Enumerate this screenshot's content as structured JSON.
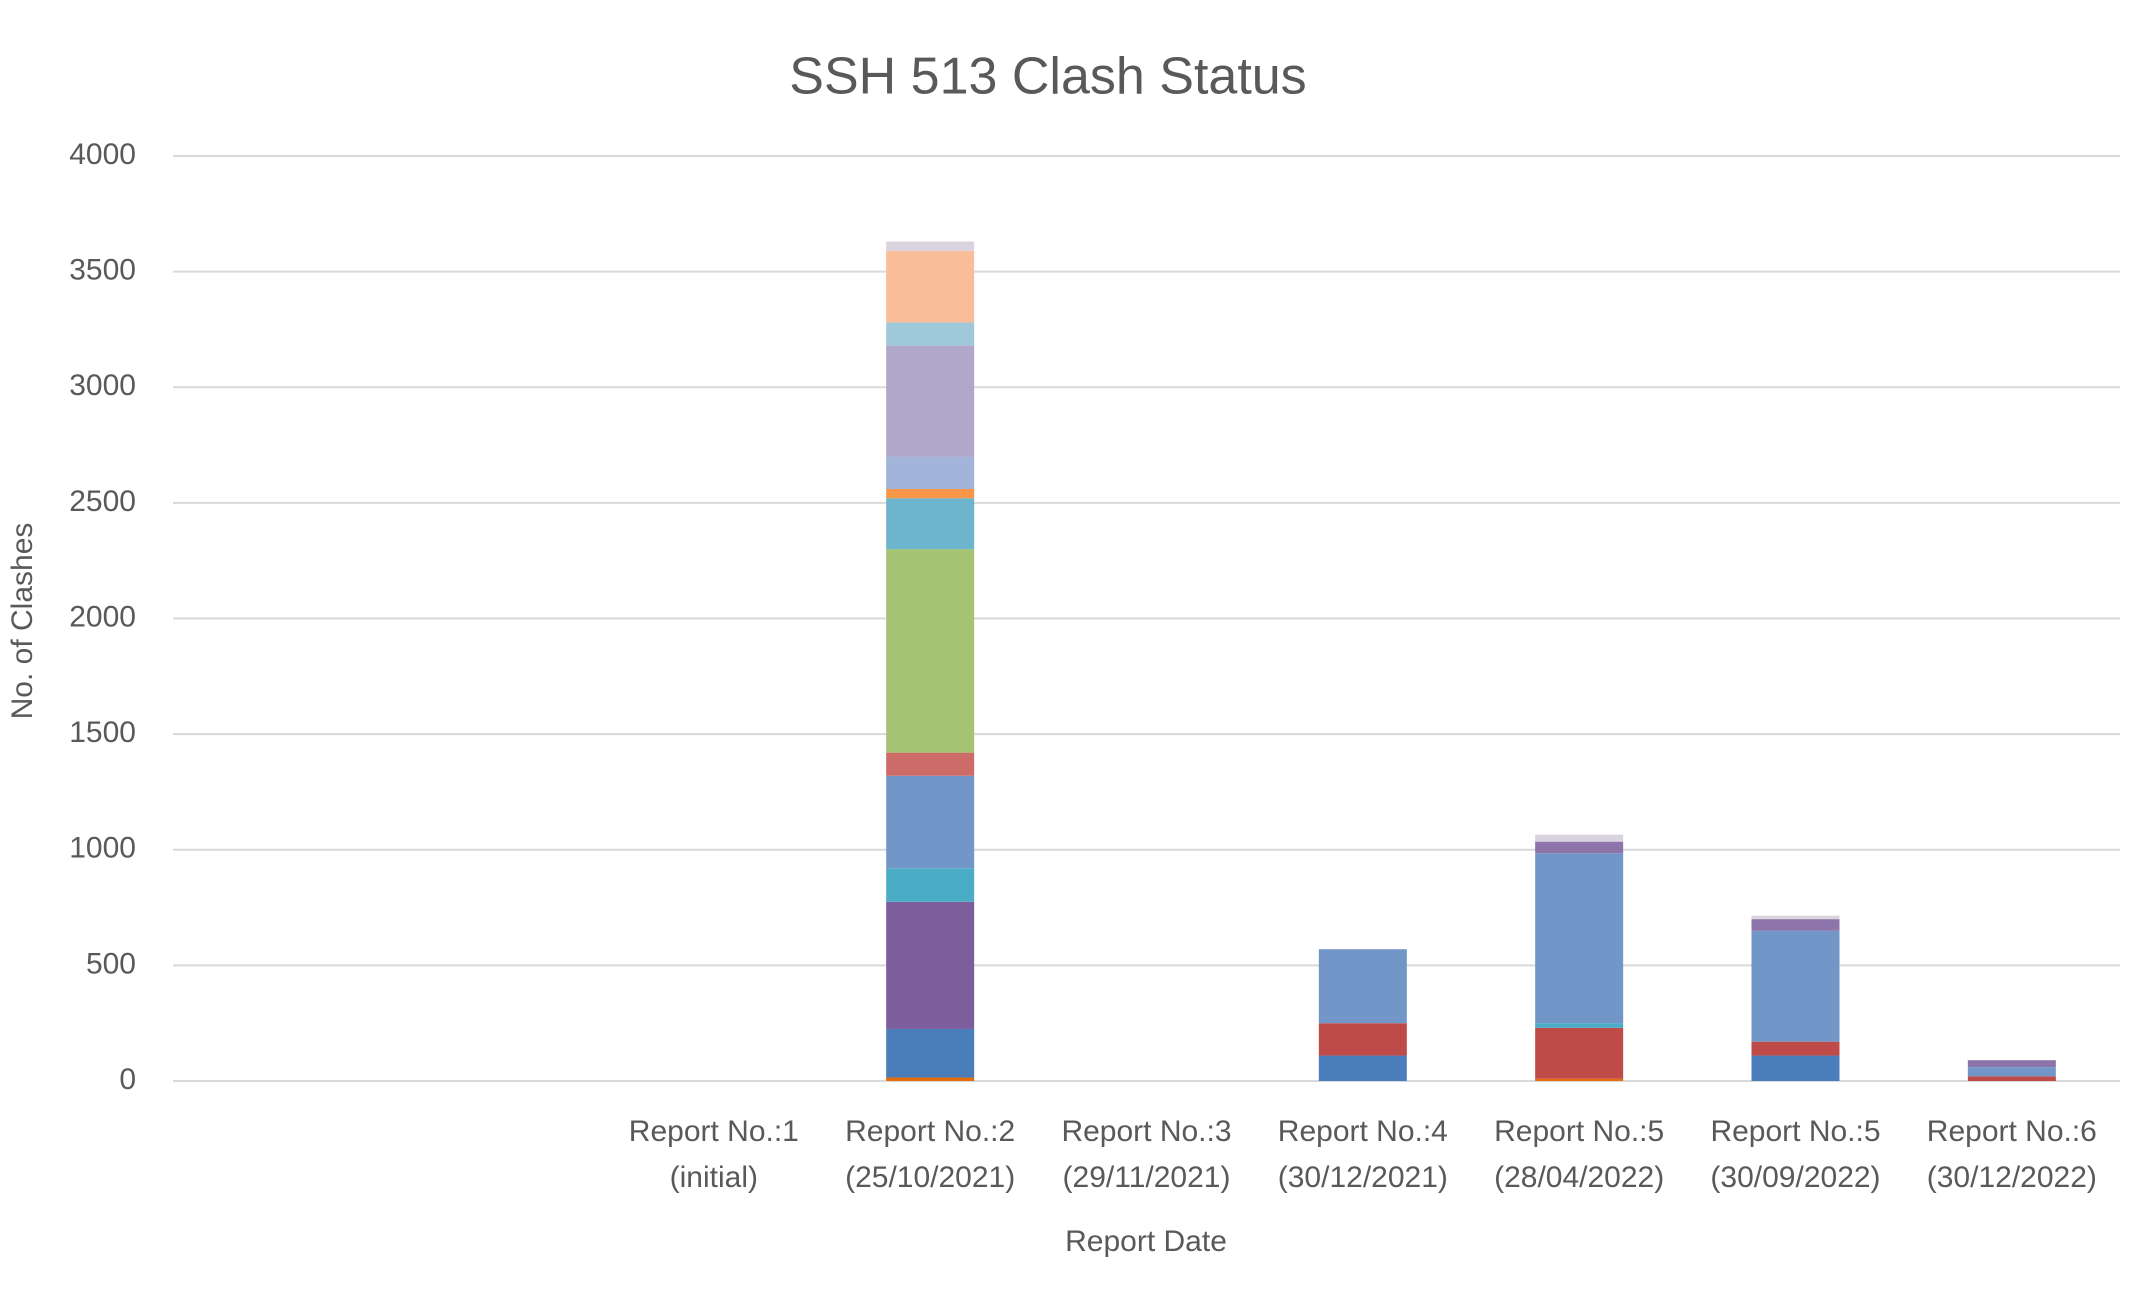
{
  "chart_data": {
    "type": "stacked_bar",
    "title": "SSH 513 Clash Status",
    "x_label": "Report Date",
    "y_label": "No. of Clashes",
    "categories": [
      null,
      null,
      [
        "Report No.:1",
        "(initial)"
      ],
      [
        "Report No.:2",
        "(25/10/2021)"
      ],
      [
        "Report No.:3",
        "(29/11/2021)"
      ],
      [
        "Report No.:4",
        "(30/12/2021)"
      ],
      [
        "Report No.:5",
        "(28/04/2022)"
      ],
      [
        "Report No.:5",
        "(30/09/2022)"
      ],
      [
        "Report No.:6",
        "(30/12/2022)"
      ]
    ],
    "series": [
      {
        "color": "#e46c0a",
        "values": [
          0,
          0,
          0,
          15,
          0,
          0,
          10,
          0,
          0
        ]
      },
      {
        "color": "#4a7ebb",
        "values": [
          0,
          0,
          0,
          210,
          0,
          110,
          0,
          110,
          0
        ]
      },
      {
        "color": "#be4b48",
        "values": [
          0,
          0,
          0,
          0,
          0,
          140,
          220,
          60,
          20
        ]
      },
      {
        "color": "#7d5e9c",
        "values": [
          0,
          0,
          0,
          550,
          0,
          0,
          0,
          0,
          0
        ]
      },
      {
        "color": "#4bacc6",
        "values": [
          0,
          0,
          0,
          145,
          0,
          0,
          20,
          0,
          0
        ]
      },
      {
        "color": "#7396c8",
        "values": [
          0,
          0,
          0,
          400,
          0,
          320,
          735,
          480,
          40
        ]
      },
      {
        "color": "#cd6b68",
        "values": [
          0,
          0,
          0,
          100,
          0,
          0,
          0,
          0,
          0
        ]
      },
      {
        "color": "#a6c373",
        "values": [
          0,
          0,
          0,
          880,
          0,
          0,
          0,
          0,
          0
        ]
      },
      {
        "color": "#6cb5cc",
        "values": [
          0,
          0,
          0,
          220,
          0,
          0,
          0,
          0,
          0
        ]
      },
      {
        "color": "#f79646",
        "values": [
          0,
          0,
          0,
          40,
          0,
          0,
          0,
          0,
          0
        ]
      },
      {
        "color": "#a2b4d9",
        "values": [
          0,
          0,
          0,
          140,
          0,
          0,
          0,
          0,
          0
        ]
      },
      {
        "color": "#b1a7c8",
        "values": [
          0,
          0,
          0,
          480,
          0,
          0,
          0,
          0,
          0
        ]
      },
      {
        "color": "#9fc9d9",
        "values": [
          0,
          0,
          0,
          100,
          0,
          0,
          0,
          0,
          0
        ]
      },
      {
        "color": "#f9be99",
        "values": [
          0,
          0,
          0,
          310,
          0,
          0,
          0,
          0,
          0
        ]
      },
      {
        "color": "#8d74ab",
        "values": [
          0,
          0,
          0,
          0,
          0,
          0,
          50,
          50,
          30
        ]
      },
      {
        "color": "#d9d3de",
        "values": [
          0,
          0,
          0,
          40,
          0,
          0,
          30,
          15,
          0
        ]
      }
    ],
    "ylim": [
      0,
      4000
    ],
    "yticks": [
      0,
      500,
      1000,
      1500,
      2000,
      2500,
      3000,
      3500,
      4000
    ],
    "grid": true
  }
}
